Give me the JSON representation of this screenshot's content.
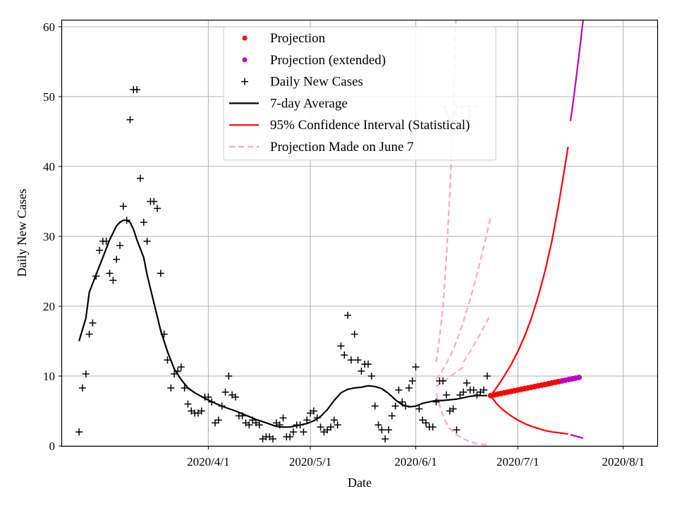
{
  "chart_data": {
    "type": "line",
    "xlabel": "Date",
    "ylabel": "Daily New Cases",
    "watermark": "VT",
    "xlim_days_from_2020_03_01": [
      -12,
      163
    ],
    "ylim": [
      0,
      61
    ],
    "x_ticks": [
      {
        "label": "2020/4/1",
        "day": 31
      },
      {
        "label": "2020/5/1",
        "day": 61
      },
      {
        "label": "2020/6/1",
        "day": 92
      },
      {
        "label": "2020/7/1",
        "day": 122
      },
      {
        "label": "2020/8/1",
        "day": 153
      }
    ],
    "y_ticks": [
      0,
      10,
      20,
      30,
      40,
      50,
      60
    ],
    "grid": true,
    "legend_position": "top-center",
    "legend": [
      {
        "label": "Projection",
        "kind": "dot",
        "color": "#ff0000"
      },
      {
        "label": "Projection (extended)",
        "kind": "dot",
        "color": "#bf00bf"
      },
      {
        "label": "Daily New Cases",
        "kind": "plus",
        "color": "#000000"
      },
      {
        "label": "7-day Average",
        "kind": "line",
        "color": "#000000"
      },
      {
        "label": "95% Confidence Interval (Statistical)",
        "kind": "line",
        "color": "#ff0000"
      },
      {
        "label": "Projection Made on June 7",
        "kind": "dash",
        "color": "#ffaaaa"
      }
    ],
    "series": [
      {
        "name": "Daily New Cases",
        "kind": "plus",
        "color": "#000000",
        "points": [
          [
            -7,
            2
          ],
          [
            -6,
            8.3
          ],
          [
            -5,
            10.3
          ],
          [
            -4,
            16
          ],
          [
            -3,
            17.6
          ],
          [
            -2,
            24.3
          ],
          [
            -1,
            28
          ],
          [
            0,
            29.3
          ],
          [
            1,
            29.3
          ],
          [
            2,
            24.7
          ],
          [
            3,
            23.7
          ],
          [
            4,
            26.7
          ],
          [
            5,
            28.7
          ],
          [
            6,
            34.3
          ],
          [
            7,
            32.3
          ],
          [
            8,
            46.7
          ],
          [
            9,
            51
          ],
          [
            10,
            51
          ],
          [
            11,
            38.3
          ],
          [
            12,
            32
          ],
          [
            13,
            29.3
          ],
          [
            14,
            35
          ],
          [
            15,
            35
          ],
          [
            16,
            34
          ],
          [
            17,
            24.7
          ],
          [
            18,
            16
          ],
          [
            19,
            12.3
          ],
          [
            20,
            8.3
          ],
          [
            21,
            10.3
          ],
          [
            22,
            10.7
          ],
          [
            23,
            11.3
          ],
          [
            24,
            8.3
          ],
          [
            25,
            6
          ],
          [
            26,
            5
          ],
          [
            27,
            4.7
          ],
          [
            28,
            4.7
          ],
          [
            29,
            5
          ],
          [
            30,
            7
          ],
          [
            31,
            7
          ],
          [
            32,
            6.3
          ],
          [
            33,
            3.3
          ],
          [
            34,
            3.7
          ],
          [
            35,
            5.7
          ],
          [
            36,
            7.7
          ],
          [
            37,
            10
          ],
          [
            38,
            7.3
          ],
          [
            39,
            7
          ],
          [
            40,
            4.3
          ],
          [
            41,
            4.3
          ],
          [
            42,
            3.3
          ],
          [
            43,
            3
          ],
          [
            44,
            3.7
          ],
          [
            45,
            3.3
          ],
          [
            46,
            3
          ],
          [
            47,
            1
          ],
          [
            48,
            1.3
          ],
          [
            49,
            1.3
          ],
          [
            50,
            1
          ],
          [
            51,
            3.3
          ],
          [
            52,
            3
          ],
          [
            53,
            4
          ],
          [
            54,
            1.3
          ],
          [
            55,
            1.3
          ],
          [
            56,
            2
          ],
          [
            57,
            3
          ],
          [
            58,
            3
          ],
          [
            59,
            2
          ],
          [
            60,
            3.7
          ],
          [
            61,
            4.7
          ],
          [
            62,
            5
          ],
          [
            63,
            4
          ],
          [
            64,
            2.7
          ],
          [
            65,
            2
          ],
          [
            66,
            2.3
          ],
          [
            67,
            2.7
          ],
          [
            68,
            3.7
          ],
          [
            69,
            3
          ],
          [
            70,
            14.3
          ],
          [
            71,
            13
          ],
          [
            72,
            18.7
          ],
          [
            73,
            12.3
          ],
          [
            74,
            16
          ],
          [
            75,
            12.3
          ],
          [
            76,
            10.7
          ],
          [
            77,
            11.7
          ],
          [
            78,
            11.7
          ],
          [
            79,
            10
          ],
          [
            80,
            5.7
          ],
          [
            81,
            3
          ],
          [
            82,
            2.3
          ],
          [
            83,
            1
          ],
          [
            84,
            2.3
          ],
          [
            85,
            4.3
          ],
          [
            86,
            5.7
          ],
          [
            87,
            8
          ],
          [
            88,
            6.3
          ],
          [
            89,
            5.7
          ],
          [
            90,
            8.3
          ],
          [
            91,
            9.3
          ],
          [
            92,
            11.3
          ],
          [
            93,
            5.3
          ],
          [
            94,
            3.7
          ],
          [
            95,
            3.3
          ],
          [
            96,
            2.7
          ],
          [
            97,
            2.7
          ],
          [
            98,
            6.3
          ],
          [
            99,
            9.3
          ],
          [
            100,
            9.3
          ],
          [
            101,
            7.3
          ],
          [
            102,
            5
          ],
          [
            103,
            5.3
          ],
          [
            104,
            2.3
          ],
          [
            105,
            7.3
          ],
          [
            106,
            7.7
          ],
          [
            107,
            9
          ],
          [
            108,
            8
          ],
          [
            109,
            8
          ],
          [
            110,
            7.3
          ],
          [
            111,
            7.7
          ],
          [
            112,
            8
          ],
          [
            113,
            10
          ]
        ]
      },
      {
        "name": "7-day Average",
        "kind": "line",
        "color": "#000000",
        "points": [
          [
            -7,
            15
          ],
          [
            -5,
            18.3
          ],
          [
            -4,
            22
          ],
          [
            -2,
            24.5
          ],
          [
            0,
            27
          ],
          [
            2,
            29.5
          ],
          [
            4,
            31.5
          ],
          [
            5,
            32
          ],
          [
            6,
            32.3
          ],
          [
            7,
            32.3
          ],
          [
            8,
            32
          ],
          [
            9,
            31
          ],
          [
            10,
            29.5
          ],
          [
            12,
            27
          ],
          [
            13,
            24.5
          ],
          [
            15,
            20.5
          ],
          [
            17,
            16.5
          ],
          [
            19,
            13.5
          ],
          [
            21,
            11
          ],
          [
            23,
            9.5
          ],
          [
            25,
            8.3
          ],
          [
            27,
            7.6
          ],
          [
            30,
            6.8
          ],
          [
            33,
            6.1
          ],
          [
            36,
            5.5
          ],
          [
            39,
            5
          ],
          [
            42,
            4.4
          ],
          [
            45,
            3.8
          ],
          [
            48,
            3.3
          ],
          [
            51,
            2.8
          ],
          [
            53,
            2.7
          ],
          [
            55,
            2.7
          ],
          [
            57,
            2.9
          ],
          [
            60,
            3.2
          ],
          [
            62,
            3.6
          ],
          [
            64,
            4.2
          ],
          [
            66,
            5.2
          ],
          [
            68,
            6.5
          ],
          [
            70,
            7.6
          ],
          [
            72,
            8.1
          ],
          [
            74,
            8.3
          ],
          [
            76,
            8.4
          ],
          [
            78,
            8.6
          ],
          [
            80,
            8.5
          ],
          [
            82,
            8.2
          ],
          [
            84,
            7.5
          ],
          [
            86,
            6.6
          ],
          [
            88,
            5.9
          ],
          [
            90,
            5.6
          ],
          [
            92,
            5.7
          ],
          [
            94,
            6.1
          ],
          [
            96,
            6.3
          ],
          [
            98,
            6.5
          ],
          [
            100,
            6.5
          ],
          [
            102,
            6.6
          ],
          [
            104,
            6.7
          ],
          [
            106,
            6.9
          ],
          [
            108,
            7.1
          ],
          [
            110,
            7.2
          ],
          [
            112,
            7.2
          ],
          [
            113,
            7.2
          ]
        ]
      },
      {
        "name": "Projection",
        "kind": "dot",
        "color": "#ff0000",
        "points": [
          [
            114,
            7.2
          ],
          [
            115,
            7.3
          ],
          [
            116,
            7.4
          ],
          [
            117,
            7.5
          ],
          [
            118,
            7.6
          ],
          [
            119,
            7.7
          ],
          [
            120,
            7.8
          ],
          [
            121,
            7.9
          ],
          [
            122,
            8
          ],
          [
            123,
            8.1
          ],
          [
            124,
            8.2
          ],
          [
            125,
            8.3
          ],
          [
            126,
            8.4
          ],
          [
            127,
            8.5
          ],
          [
            128,
            8.6
          ],
          [
            129,
            8.7
          ],
          [
            130,
            8.8
          ],
          [
            131,
            8.9
          ],
          [
            132,
            9
          ],
          [
            133,
            9.1
          ],
          [
            134,
            9.2
          ]
        ]
      },
      {
        "name": "Projection (extended)",
        "kind": "dot",
        "color": "#bf00bf",
        "points": [
          [
            135,
            9.3
          ],
          [
            136,
            9.4
          ],
          [
            137,
            9.5
          ],
          [
            138,
            9.6
          ],
          [
            139,
            9.7
          ],
          [
            140,
            9.8
          ]
        ]
      },
      {
        "name": "95% CI upper",
        "kind": "line",
        "color": "#ff0000",
        "points": [
          [
            114,
            7.2
          ],
          [
            116,
            8.5
          ],
          [
            118,
            10
          ],
          [
            120,
            11.6
          ],
          [
            122,
            13.5
          ],
          [
            124,
            15.7
          ],
          [
            126,
            18.3
          ],
          [
            128,
            21.4
          ],
          [
            130,
            25
          ],
          [
            132,
            29.3
          ],
          [
            134,
            34.5
          ],
          [
            135,
            37.5
          ],
          [
            136,
            40.5
          ],
          [
            136.8,
            42.8
          ]
        ]
      },
      {
        "name": "95% CI lower",
        "kind": "line",
        "color": "#ff0000",
        "points": [
          [
            114,
            7.2
          ],
          [
            116,
            5.9
          ],
          [
            118,
            5
          ],
          [
            120,
            4.3
          ],
          [
            122,
            3.7
          ],
          [
            124,
            3.2
          ],
          [
            126,
            2.8
          ],
          [
            128,
            2.5
          ],
          [
            130,
            2.2
          ],
          [
            132,
            2
          ],
          [
            134,
            1.9
          ],
          [
            136.8,
            1.7
          ]
        ]
      },
      {
        "name": "95% CI upper (extended)",
        "kind": "line",
        "color": "#bf00bf",
        "points": [
          [
            137.5,
            46.5
          ],
          [
            138.5,
            50
          ],
          [
            139.5,
            54
          ],
          [
            140.5,
            58
          ],
          [
            141.2,
            61
          ]
        ]
      },
      {
        "name": "95% CI lower (extended)",
        "kind": "line",
        "color": "#bf00bf",
        "points": [
          [
            137.5,
            1.6
          ],
          [
            139,
            1.4
          ],
          [
            140.5,
            1.2
          ],
          [
            141.2,
            1.1
          ]
        ]
      },
      {
        "name": "Projection Made on June 7 (mean)",
        "kind": "dash",
        "color": "#ffaaaa",
        "points": [
          [
            98,
            8.5
          ],
          [
            100,
            9.2
          ],
          [
            102,
            9.9
          ],
          [
            104,
            10.6
          ],
          [
            106,
            11.3
          ]
        ]
      },
      {
        "name": "Projection Made on June 7 (upper)",
        "kind": "dash",
        "color": "#ffaaaa",
        "points": [
          [
            98,
            9.5
          ],
          [
            100,
            11
          ],
          [
            102,
            12.7
          ],
          [
            104,
            15
          ],
          [
            106,
            17.8
          ],
          [
            108,
            21
          ],
          [
            110,
            24.6
          ],
          [
            112,
            28.5
          ],
          [
            114,
            32.8
          ]
        ]
      },
      {
        "name": "Projection Made on June 7 (upper far)",
        "kind": "dash",
        "color": "#ffaaaa",
        "points": [
          [
            98,
            12
          ],
          [
            99,
            15.5
          ],
          [
            100,
            20
          ],
          [
            101,
            27
          ],
          [
            102,
            36
          ],
          [
            103,
            47
          ],
          [
            103.8,
            61
          ]
        ]
      },
      {
        "name": "Projection Made on June 7 (lower)",
        "kind": "dash",
        "color": "#ffaaaa",
        "points": [
          [
            98,
            7.5
          ],
          [
            99,
            5.8
          ],
          [
            100,
            4.4
          ],
          [
            101,
            3.3
          ],
          [
            102,
            2.5
          ],
          [
            104,
            1.6
          ],
          [
            106,
            1
          ],
          [
            108,
            0.6
          ],
          [
            110,
            0.3
          ],
          [
            114,
            0.1
          ]
        ]
      },
      {
        "name": "Projection Made on June 7 (lower far)",
        "kind": "dash",
        "color": "#ffaaaa",
        "points": [
          [
            106,
            12
          ],
          [
            108,
            13.5
          ],
          [
            110,
            15.2
          ],
          [
            112,
            17
          ],
          [
            114,
            18.8
          ]
        ]
      }
    ]
  }
}
